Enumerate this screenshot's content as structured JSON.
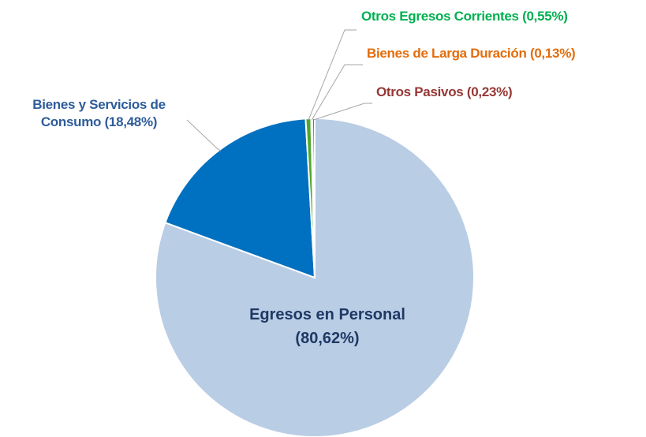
{
  "chart_data": {
    "type": "pie",
    "categories": [
      "Egresos en Personal",
      "Bienes y Servicios de Consumo",
      "Otros Egresos Corrientes",
      "Bienes de Larga Duración",
      "Otros Pasivos"
    ],
    "values": [
      80.62,
      18.48,
      0.55,
      0.13,
      0.23
    ],
    "value_labels": [
      "(80,62%)",
      "(18,48%)",
      "(0,55%)",
      "(0,13%)",
      "(0,23%)"
    ],
    "colors": [
      "#b9cde5",
      "#0070c0",
      "#4ea72e",
      "#e46c0a",
      "#953735"
    ],
    "label_colors": [
      "#1f3864",
      "#2e5c9a",
      "#00b050",
      "#e46c0a",
      "#953735"
    ]
  }
}
